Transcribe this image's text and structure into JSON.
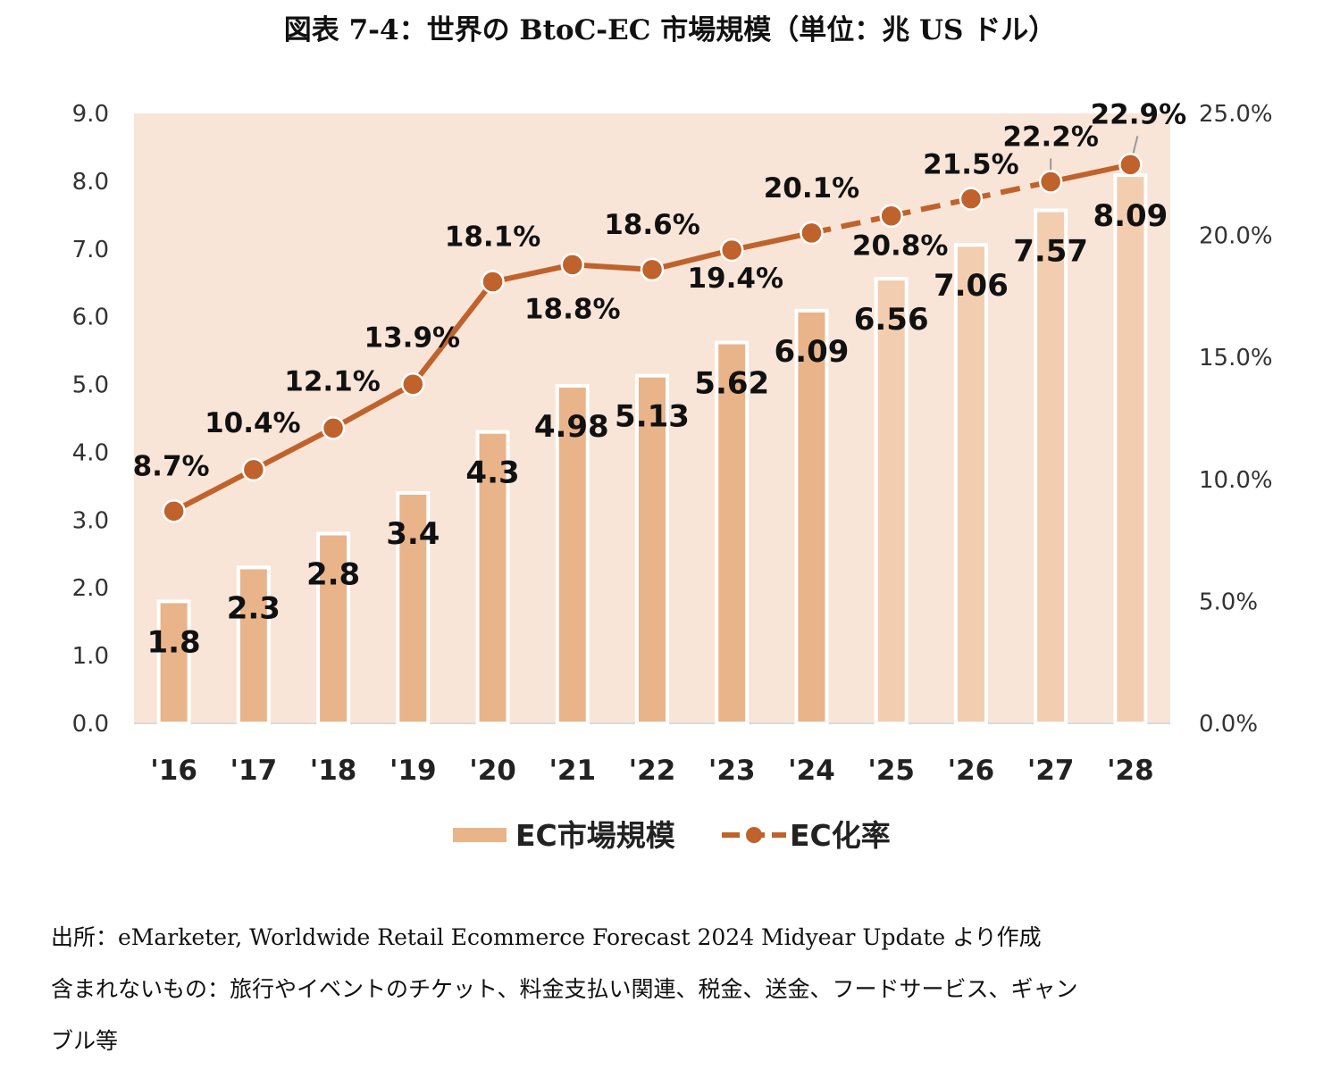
{
  "title": "図表 7-4：世界の BtoC-EC 市場規模（単位：兆 US ドル）",
  "chart_data": {
    "type": "bar+line",
    "categories": [
      "'16",
      "'17",
      "'18",
      "'19",
      "'20",
      "'21",
      "'22",
      "'23",
      "'24",
      "'25",
      "'26",
      "'27",
      "'28"
    ],
    "series": [
      {
        "name": "EC市場規模",
        "type": "bar",
        "axis": "left",
        "values": [
          1.8,
          2.3,
          2.8,
          3.4,
          4.3,
          4.98,
          5.13,
          5.62,
          6.09,
          6.56,
          7.06,
          7.57,
          8.09
        ],
        "labels": [
          "1.8",
          "2.3",
          "2.8",
          "3.4",
          "4.3",
          "4.98",
          "5.13",
          "5.62",
          "6.09",
          "6.56",
          "7.06",
          "7.57",
          "8.09"
        ],
        "color": "#e9b48a",
        "forecast_color": "#f2cdb0"
      },
      {
        "name": "EC化率",
        "type": "line",
        "axis": "right",
        "values": [
          8.7,
          10.4,
          12.1,
          13.9,
          18.1,
          18.8,
          18.6,
          19.4,
          20.1,
          20.8,
          21.5,
          22.2,
          22.9
        ],
        "labels": [
          "8.7%",
          "10.4%",
          "12.1%",
          "13.9%",
          "18.1%",
          "18.8%",
          "18.6%",
          "19.4%",
          "20.1%",
          "20.8%",
          "21.5%",
          "22.2%",
          "22.9%"
        ],
        "color": "#c0622b"
      }
    ],
    "y_left": {
      "range": [
        0,
        9
      ],
      "ticks": [
        "0.0",
        "1.0",
        "2.0",
        "3.0",
        "4.0",
        "5.0",
        "6.0",
        "7.0",
        "8.0",
        "9.0"
      ]
    },
    "y_right": {
      "range": [
        0,
        25
      ],
      "ticks": [
        "0.0%",
        "5.0%",
        "10.0%",
        "15.0%",
        "20.0%",
        "25.0%"
      ]
    },
    "plot_background": "#f8e5d8",
    "grid": false,
    "legend": "bottom"
  },
  "notes": [
    "出所：eMarketer, Worldwide Retail Ecommerce Forecast 2024 Midyear Update より作成",
    "含まれないもの：旅行やイベントのチケット、料金支払い関連、税金、送金、フードサービス、ギャン",
    "ブル等"
  ]
}
